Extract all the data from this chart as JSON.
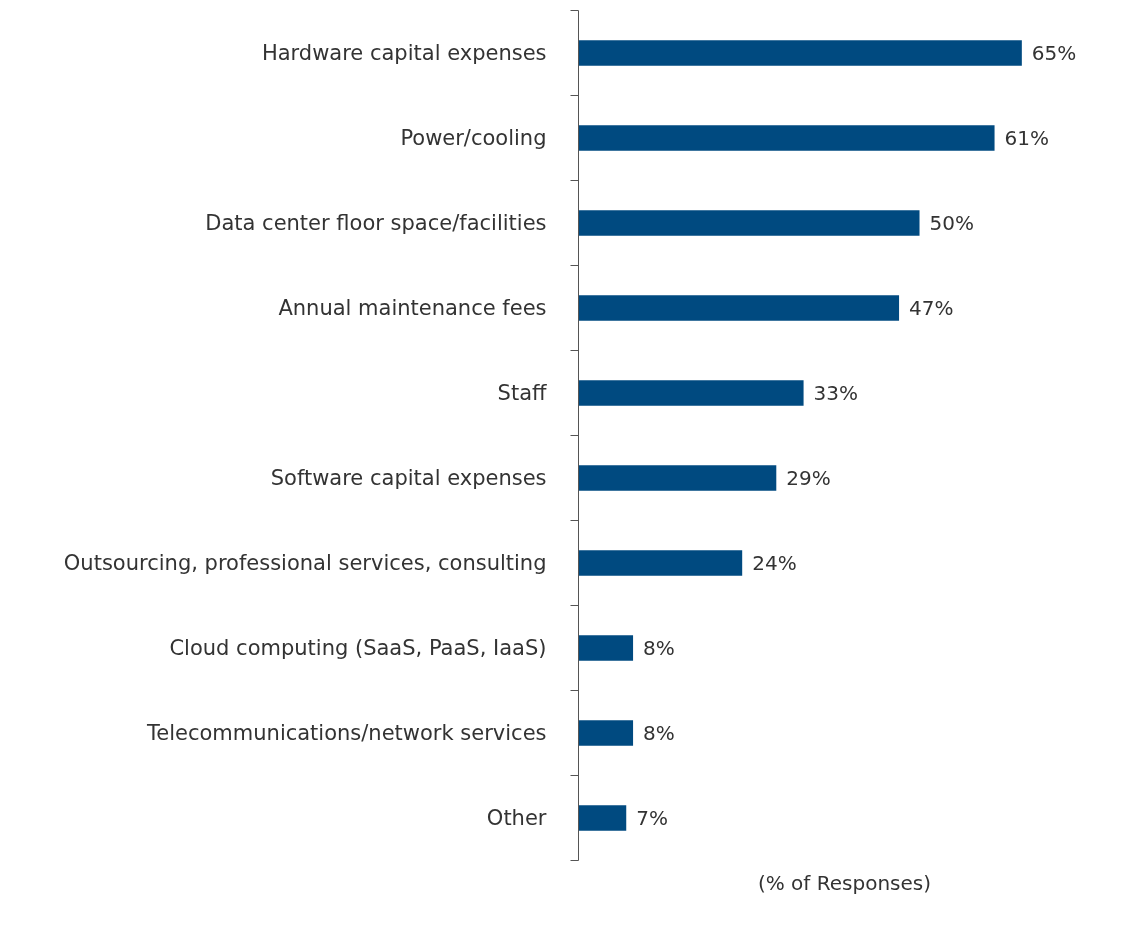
{
  "chart_data": {
    "type": "bar",
    "orientation": "horizontal",
    "xlabel": "(% of Responses)",
    "categories": [
      "Hardware capital expenses",
      "Power/cooling",
      "Data center floor space/facilities",
      "Annual maintenance fees",
      "Staff",
      "Software capital expenses",
      "Outsourcing, professional services, consulting",
      "Cloud computing (SaaS, PaaS, IaaS)",
      "Telecommunications/network services",
      "Other"
    ],
    "values": [
      65,
      61,
      50,
      47,
      33,
      29,
      24,
      8,
      8,
      7
    ],
    "value_labels": [
      "65%",
      "61%",
      "50%",
      "47%",
      "33%",
      "29%",
      "24%",
      "8%",
      "8%",
      "7%"
    ],
    "color": "#004a80",
    "grid": false
  }
}
